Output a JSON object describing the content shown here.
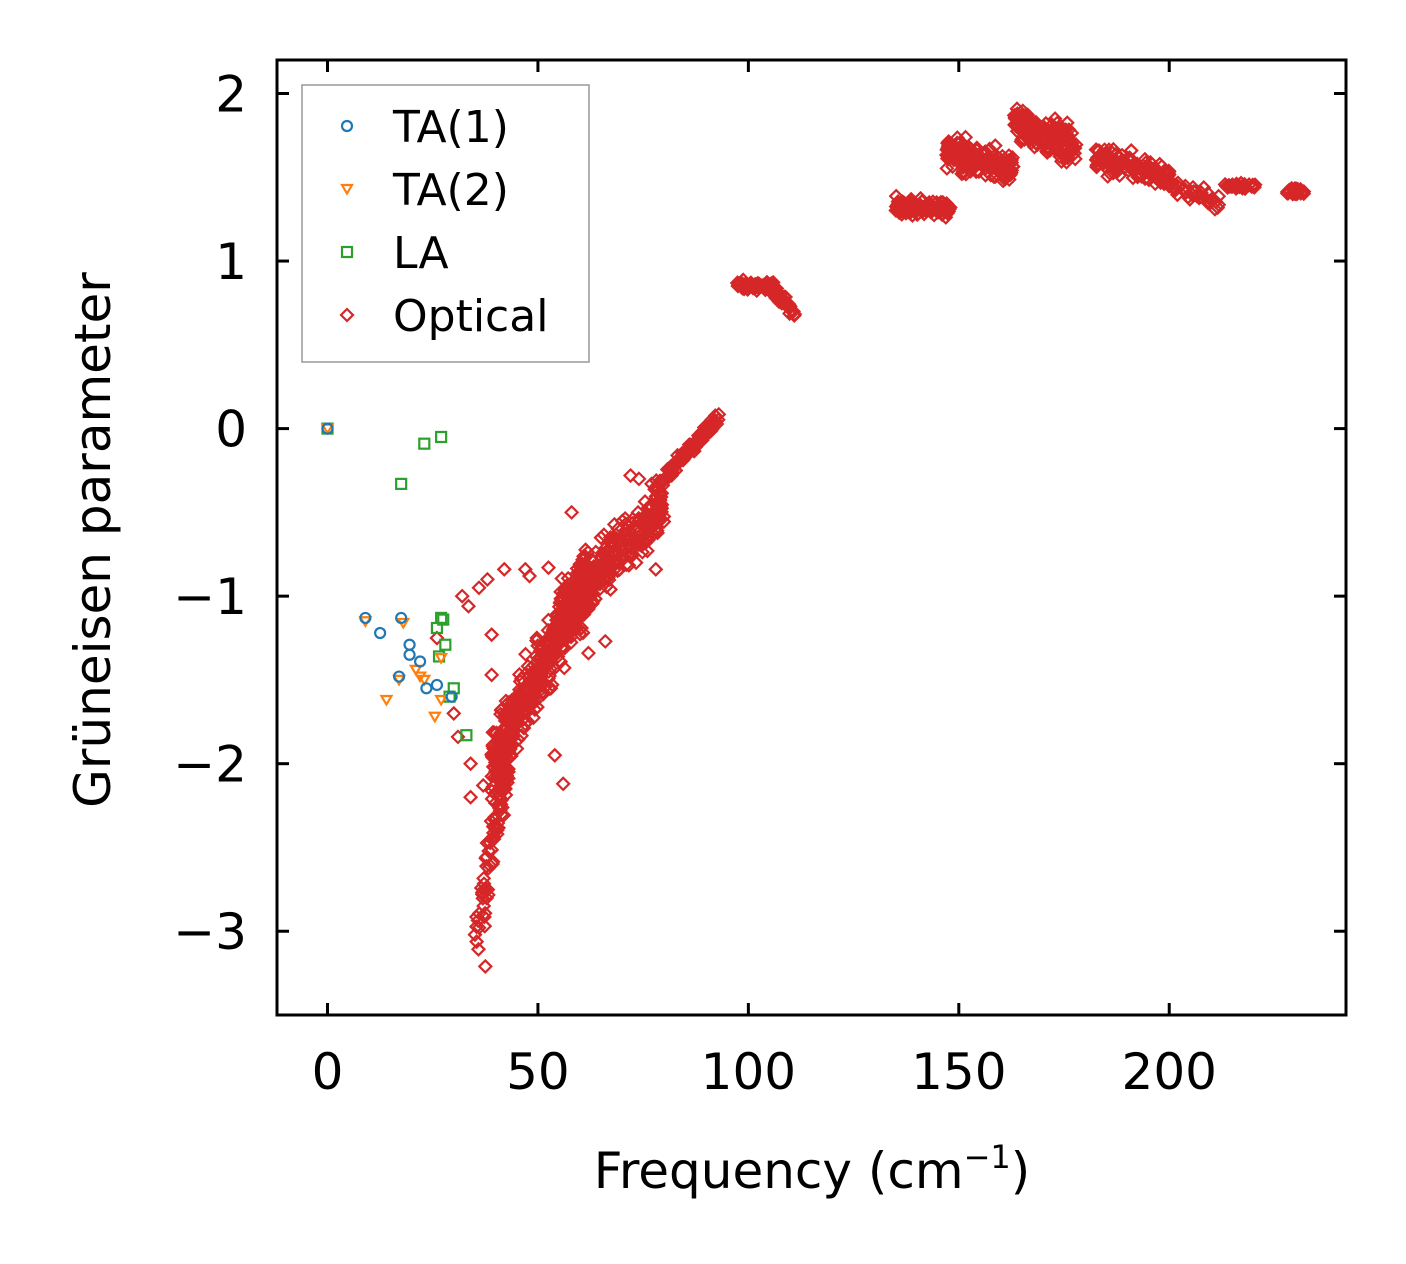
{
  "chart_data": {
    "type": "scatter",
    "xlabel": "Frequency (cm",
    "xlabel_sup": "−1",
    "xlabel_end": ")",
    "ylabel": "Grüneisen parameter",
    "xlim": [
      -12,
      242
    ],
    "ylim": [
      -3.5,
      2.2
    ],
    "xticks": [
      0,
      50,
      100,
      150,
      200
    ],
    "xtick_labels": [
      "0",
      "50",
      "100",
      "150",
      "200"
    ],
    "yticks": [
      2,
      1,
      0,
      -1,
      -2,
      -3
    ],
    "ytick_labels": [
      "2",
      "1",
      "0",
      "−1",
      "−2",
      "−3"
    ],
    "legend_position": "top-left",
    "series": [
      {
        "name": "TA(1)",
        "color": "#1f77b4",
        "marker": "circle",
        "points": [
          [
            0,
            0
          ],
          [
            9,
            -1.13
          ],
          [
            12.5,
            -1.22
          ],
          [
            17.5,
            -1.13
          ],
          [
            19.5,
            -1.29
          ],
          [
            19.5,
            -1.35
          ],
          [
            22,
            -1.39
          ],
          [
            17,
            -1.48
          ],
          [
            23.5,
            -1.55
          ],
          [
            26,
            -1.53
          ],
          [
            29.5,
            -1.6
          ]
        ]
      },
      {
        "name": "TA(2)",
        "color": "#ff7f0e",
        "marker": "triangle-down",
        "points": [
          [
            0,
            0
          ],
          [
            9,
            -1.15
          ],
          [
            18,
            -1.16
          ],
          [
            21,
            -1.44
          ],
          [
            22,
            -1.48
          ],
          [
            23,
            -1.5
          ],
          [
            17,
            -1.5
          ],
          [
            14,
            -1.62
          ],
          [
            25.5,
            -1.72
          ],
          [
            27,
            -1.62
          ],
          [
            27,
            -1.37
          ]
        ]
      },
      {
        "name": "LA",
        "color": "#2ca02c",
        "marker": "square",
        "points": [
          [
            0,
            0
          ],
          [
            17.5,
            -0.33
          ],
          [
            23,
            -0.09
          ],
          [
            27,
            -0.05
          ],
          [
            27,
            -1.13
          ],
          [
            27.5,
            -1.14
          ],
          [
            26,
            -1.19
          ],
          [
            28,
            -1.29
          ],
          [
            26.5,
            -1.36
          ],
          [
            29,
            -1.6
          ],
          [
            30,
            -1.55
          ],
          [
            33,
            -1.83
          ]
        ]
      },
      {
        "name": "Optical",
        "color": "#d62728",
        "marker": "diamond",
        "groups": [
          {
            "x_range": [
              35,
              44
            ],
            "y_center_start": -3.1,
            "y_center_end": -1.8,
            "y_spread": 0.18,
            "count": 90
          },
          {
            "x_range": [
              39,
              62
            ],
            "y_center_start": -2.0,
            "y_center_end": -0.9,
            "y_spread": 0.2,
            "count": 420
          },
          {
            "x_range": [
              55,
              80
            ],
            "y_center_start": -1.1,
            "y_center_end": -0.45,
            "y_spread": 0.15,
            "count": 320
          },
          {
            "x_range": [
              78,
              93
            ],
            "y_center_start": -0.35,
            "y_center_end": 0.07,
            "y_spread": 0.04,
            "count": 90
          },
          {
            "x_range": [
              97,
              106
            ],
            "y_center_start": 0.86,
            "y_center_end": 0.85,
            "y_spread": 0.03,
            "count": 70
          },
          {
            "x_range": [
              106,
              111
            ],
            "y_center_start": 0.82,
            "y_center_end": 0.7,
            "y_spread": 0.04,
            "count": 35
          },
          {
            "x_range": [
              135,
              148
            ],
            "y_center_start": 1.33,
            "y_center_end": 1.31,
            "y_spread": 0.05,
            "count": 110
          },
          {
            "x_range": [
              147,
              163
            ],
            "y_center_start": 1.65,
            "y_center_end": 1.55,
            "y_spread": 0.08,
            "count": 180
          },
          {
            "x_range": [
              163,
              178
            ],
            "y_center_start": 1.82,
            "y_center_end": 1.68,
            "y_spread": 0.1,
            "count": 180
          },
          {
            "x_range": [
              182,
              200
            ],
            "y_center_start": 1.62,
            "y_center_end": 1.5,
            "y_spread": 0.07,
            "count": 130
          },
          {
            "x_range": [
              200,
              212
            ],
            "y_center_start": 1.45,
            "y_center_end": 1.35,
            "y_spread": 0.04,
            "count": 45
          },
          {
            "x_range": [
              213,
              221
            ],
            "y_center_start": 1.45,
            "y_center_end": 1.45,
            "y_spread": 0.015,
            "count": 30
          },
          {
            "x_range": [
              228,
              232
            ],
            "y_center_start": 1.42,
            "y_center_end": 1.41,
            "y_spread": 0.02,
            "count": 25
          }
        ],
        "outliers": [
          [
            32,
            -1.0
          ],
          [
            33.5,
            -1.06
          ],
          [
            36,
            -0.95
          ],
          [
            38,
            -0.9
          ],
          [
            42,
            -0.84
          ],
          [
            47,
            -0.84
          ],
          [
            48,
            -0.88
          ],
          [
            52.5,
            -0.83
          ],
          [
            39,
            -1.23
          ],
          [
            26,
            -1.25
          ],
          [
            30,
            -1.7
          ],
          [
            31,
            -1.84
          ],
          [
            34,
            -2.0
          ],
          [
            34,
            -2.2
          ],
          [
            37,
            -2.13
          ],
          [
            39,
            -1.47
          ],
          [
            54,
            -1.95
          ],
          [
            56,
            -2.12
          ],
          [
            58,
            -0.5
          ],
          [
            62,
            -1.34
          ],
          [
            66,
            -1.27
          ],
          [
            72,
            -0.28
          ],
          [
            74,
            -0.3
          ],
          [
            77,
            -0.33
          ],
          [
            78,
            -0.84
          ],
          [
            76,
            -0.73
          ],
          [
            81,
            -0.24
          ],
          [
            37.5,
            -3.21
          ]
        ]
      }
    ]
  }
}
